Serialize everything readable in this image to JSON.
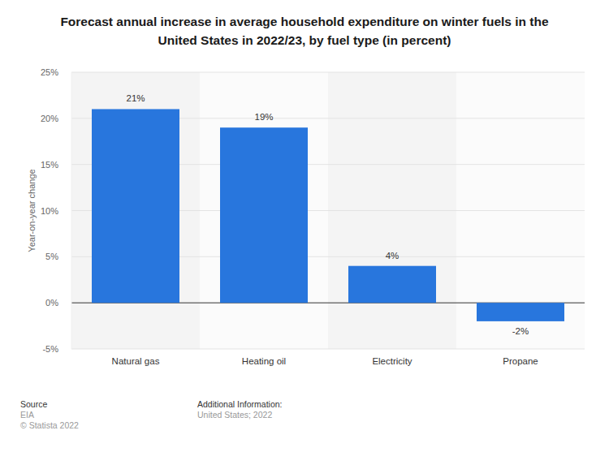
{
  "chart_data": {
    "type": "bar",
    "title": "Forecast annual increase in average household expenditure on winter fuels in the United States in 2022/23, by fuel type (in percent)",
    "y_label": "Year-on-year change",
    "categories": [
      "Natural gas",
      "Heating oil",
      "Electricity",
      "Propane"
    ],
    "values": [
      21,
      19,
      4,
      -2
    ],
    "value_labels": [
      "21%",
      "19%",
      "4%",
      "-2%"
    ],
    "color": "#2876dd",
    "ylim": [
      -5,
      25
    ],
    "yticks": [
      {
        "value": -5,
        "label": "-5%"
      },
      {
        "value": 0,
        "label": "0%"
      },
      {
        "value": 5,
        "label": "5%"
      },
      {
        "value": 10,
        "label": "10%"
      },
      {
        "value": 15,
        "label": "15%"
      },
      {
        "value": 20,
        "label": "20%"
      },
      {
        "value": 25,
        "label": "25%"
      }
    ],
    "grid": true,
    "data_labels": true
  },
  "footer": {
    "source_label": "Source",
    "source": "EIA",
    "copyright": "© Statista 2022",
    "info_label": "Additional Information:",
    "info": "United States; 2022"
  }
}
